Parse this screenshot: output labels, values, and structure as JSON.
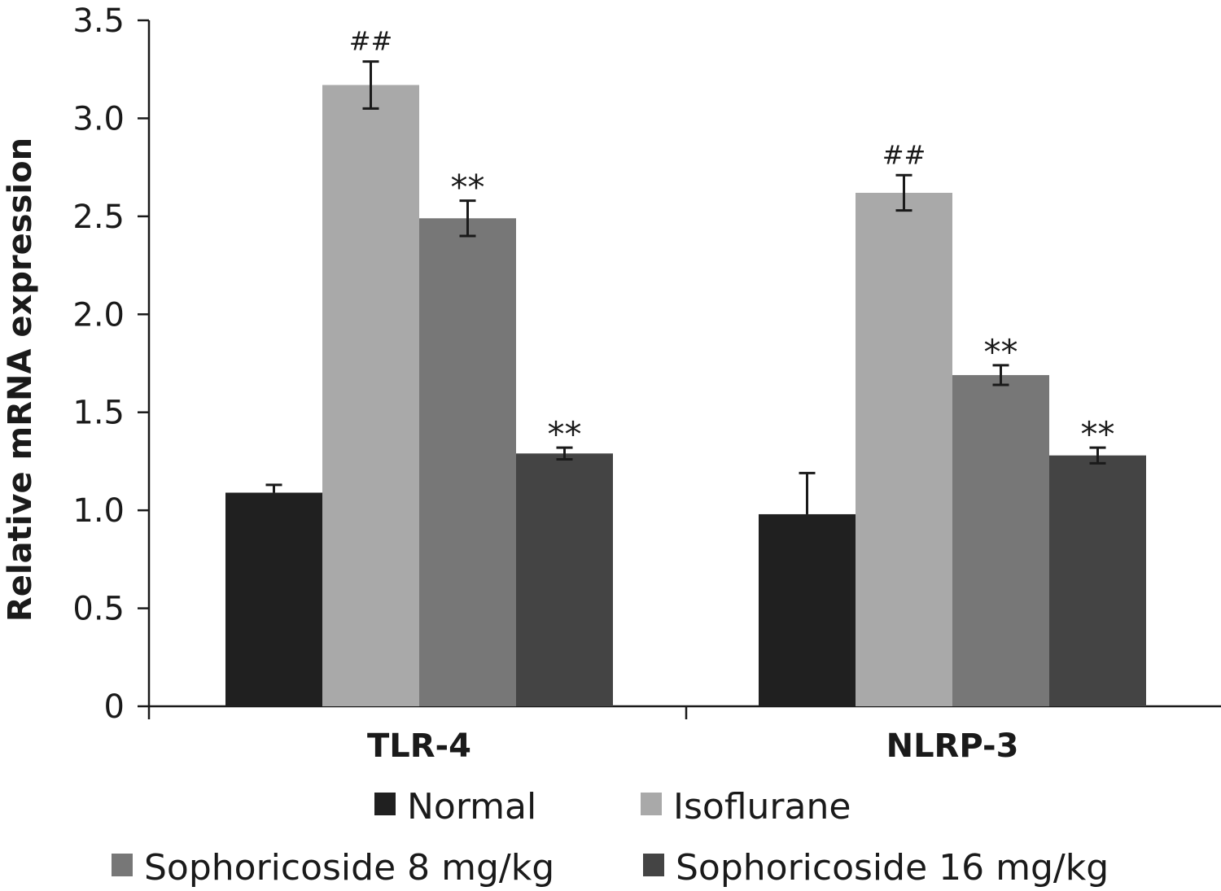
{
  "chart_data": {
    "type": "bar",
    "categories": [
      "TLR-4",
      "NLRP-3"
    ],
    "ylabel": "Relative mRNA expression",
    "xlabel": "",
    "ylim": [
      0,
      3.5
    ],
    "yticks": [
      {
        "value": 0,
        "label": "0"
      },
      {
        "value": 0.5,
        "label": "0.5"
      },
      {
        "value": 1.0,
        "label": "1.0"
      },
      {
        "value": 1.5,
        "label": "1.5"
      },
      {
        "value": 2.0,
        "label": "2.0"
      },
      {
        "value": 2.5,
        "label": "2.5"
      },
      {
        "value": 3.0,
        "label": "3.0"
      },
      {
        "value": 3.5,
        "label": "3.5"
      }
    ],
    "grid": false,
    "legend_position": "bottom",
    "series": [
      {
        "name": "Normal",
        "color": "#202020",
        "values": [
          1.09,
          0.98
        ],
        "errors": [
          0.04,
          0.21
        ],
        "error_style": [
          "upper",
          "upper"
        ],
        "annotations": [
          "",
          ""
        ]
      },
      {
        "name": "Isoflurane",
        "color": "#a9a9a9",
        "values": [
          3.17,
          2.62
        ],
        "errors": [
          0.12,
          0.09
        ],
        "error_style": [
          "both",
          "both"
        ],
        "annotations": [
          "##",
          "##"
        ]
      },
      {
        "name": "Sophoricoside 8 mg/kg",
        "color": "#777777",
        "values": [
          2.49,
          1.69
        ],
        "errors": [
          0.09,
          0.05
        ],
        "error_style": [
          "both",
          "both"
        ],
        "annotations": [
          "**",
          "**"
        ]
      },
      {
        "name": "Sophoricoside 16 mg/kg",
        "color": "#444444",
        "values": [
          1.29,
          1.28
        ],
        "errors": [
          0.03,
          0.04
        ],
        "error_style": [
          "both",
          "both"
        ],
        "annotations": [
          "**",
          "**"
        ]
      }
    ]
  }
}
